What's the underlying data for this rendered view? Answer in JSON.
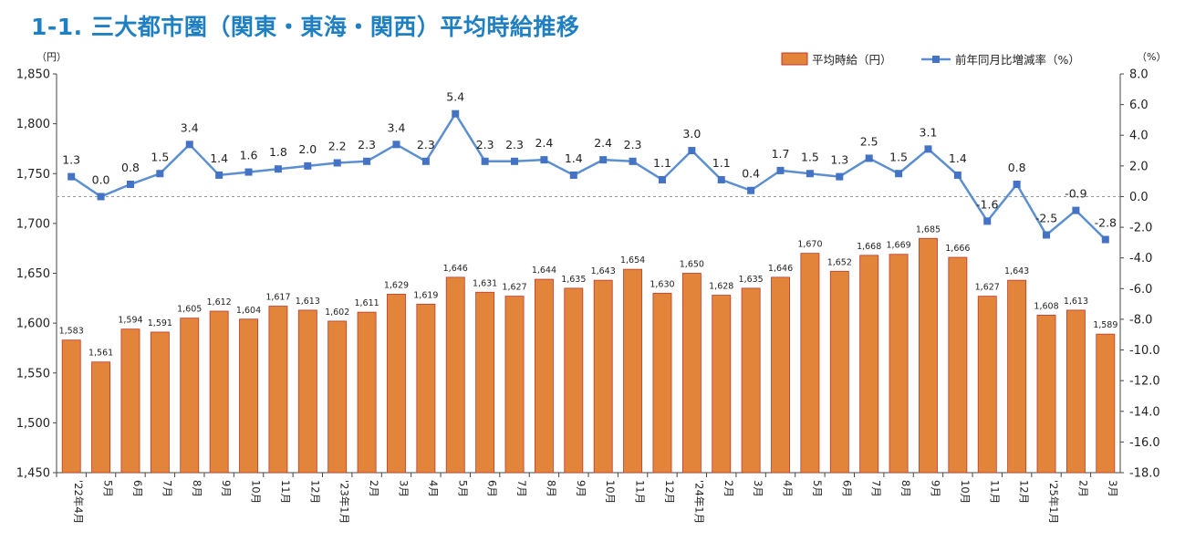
{
  "title": "1-1. 三大都市圏（関東・東海・関西）平均時給推移",
  "chart_data": {
    "type": "bar",
    "categories": [
      "'22年4月",
      "5月",
      "6月",
      "7月",
      "8月",
      "9月",
      "10月",
      "11月",
      "12月",
      "'23年1月",
      "2月",
      "3月",
      "4月",
      "5月",
      "6月",
      "7月",
      "8月",
      "9月",
      "10月",
      "11月",
      "12月",
      "'24年1月",
      "2月",
      "3月",
      "4月",
      "5月",
      "6月",
      "7月",
      "8月",
      "9月",
      "10月",
      "11月",
      "12月",
      "'25年1月",
      "2月",
      "3月"
    ],
    "y_left_unit": "（円）",
    "y_right_unit": "（%）",
    "ylim_left": [
      1450,
      1850
    ],
    "yticks_left": [
      "1,450",
      "1,500",
      "1,550",
      "1,600",
      "1,650",
      "1,700",
      "1,750",
      "1,800",
      "1,850"
    ],
    "ylim_right": [
      -18,
      8
    ],
    "yticks_right": [
      "-18.0",
      "-16.0",
      "-14.0",
      "-12.0",
      "-10.0",
      "-8.0",
      "-6.0",
      "-4.0",
      "-2.0",
      "0.0",
      "2.0",
      "4.0",
      "6.0",
      "8.0"
    ],
    "series": [
      {
        "name": "平均時給（円）",
        "type": "bar",
        "axis": "left",
        "color": "#e2843a",
        "edge_color": "#c0392b",
        "values": [
          1583,
          1561,
          1594,
          1591,
          1605,
          1612,
          1604,
          1617,
          1613,
          1602,
          1611,
          1629,
          1619,
          1646,
          1631,
          1627,
          1644,
          1635,
          1643,
          1654,
          1630,
          1650,
          1628,
          1635,
          1646,
          1670,
          1652,
          1668,
          1669,
          1685,
          1666,
          1627,
          1643,
          1608,
          1613,
          1589
        ],
        "labels": [
          "1,583",
          "1,561",
          "1,594",
          "1,591",
          "1,605",
          "1,612",
          "1,604",
          "1,617",
          "1,613",
          "1,602",
          "1,611",
          "1,629",
          "1,619",
          "1,646",
          "1,631",
          "1,627",
          "1,644",
          "1,635",
          "1,643",
          "1,654",
          "1,630",
          "1,650",
          "1,628",
          "1,635",
          "1,646",
          "1,670",
          "1,652",
          "1,668",
          "1,669",
          "1,685",
          "1,666",
          "1,627",
          "1,643",
          "1,608",
          "1,613",
          "1,589"
        ]
      },
      {
        "name": "前年同月比増減率（%）",
        "type": "line",
        "axis": "right",
        "color": "#5b8fd1",
        "marker_color": "#4472c4",
        "values": [
          1.3,
          0.0,
          0.8,
          1.5,
          3.4,
          1.4,
          1.6,
          1.8,
          2.0,
          2.2,
          2.3,
          3.4,
          2.3,
          5.4,
          2.3,
          2.3,
          2.4,
          1.4,
          2.4,
          2.3,
          1.1,
          3.0,
          1.1,
          0.4,
          1.7,
          1.5,
          1.3,
          2.5,
          1.5,
          3.1,
          1.4,
          -1.6,
          0.8,
          -2.5,
          -0.9,
          -2.8
        ],
        "labels": [
          "1.3",
          "0.0",
          "0.8",
          "1.5",
          "3.4",
          "1.4",
          "1.6",
          "1.8",
          "2.0",
          "2.2",
          "2.3",
          "3.4",
          "2.3",
          "5.4",
          "2.3",
          "2.3",
          "2.4",
          "1.4",
          "2.4",
          "2.3",
          "1.1",
          "3.0",
          "1.1",
          "0.4",
          "1.7",
          "1.5",
          "1.3",
          "2.5",
          "1.5",
          "3.1",
          "1.4",
          "-1.6",
          "0.8",
          "-2.5",
          "-0.9",
          "-2.8"
        ]
      }
    ],
    "reference_line": 0,
    "legend_position": "top-right",
    "grid": false
  }
}
